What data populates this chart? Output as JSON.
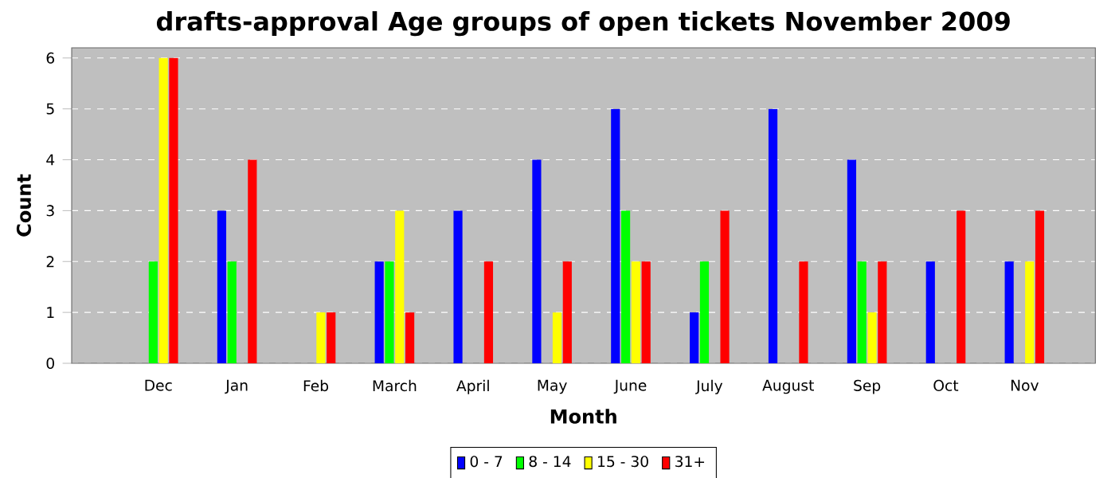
{
  "chart_data": {
    "type": "bar",
    "title": "drafts-approval Age groups of open tickets November 2009",
    "xlabel": "Month",
    "ylabel": "Count",
    "categories": [
      "Dec",
      "Jan",
      "Feb",
      "March",
      "April",
      "May",
      "June",
      "July",
      "August",
      "Sep",
      "Oct",
      "Nov"
    ],
    "series": [
      {
        "name": "0 - 7",
        "color": "#0000ff",
        "values": [
          0,
          3,
          0,
          2,
          3,
          4,
          5,
          1,
          5,
          4,
          2,
          2
        ]
      },
      {
        "name": "8 - 14",
        "color": "#00ff00",
        "values": [
          2,
          2,
          0,
          2,
          0,
          0,
          3,
          2,
          0,
          2,
          0,
          0
        ]
      },
      {
        "name": "15 - 30",
        "color": "#ffff00",
        "values": [
          6,
          0,
          1,
          3,
          0,
          1,
          2,
          0,
          0,
          1,
          0,
          2
        ]
      },
      {
        "name": "31+",
        "color": "#ff0000",
        "values": [
          6,
          4,
          1,
          1,
          2,
          2,
          2,
          3,
          2,
          2,
          3,
          3
        ]
      }
    ],
    "ylim": [
      0,
      6.2
    ],
    "yticks": [
      0,
      1,
      2,
      3,
      4,
      5,
      6
    ],
    "grid": "y",
    "legend": "bottom"
  }
}
